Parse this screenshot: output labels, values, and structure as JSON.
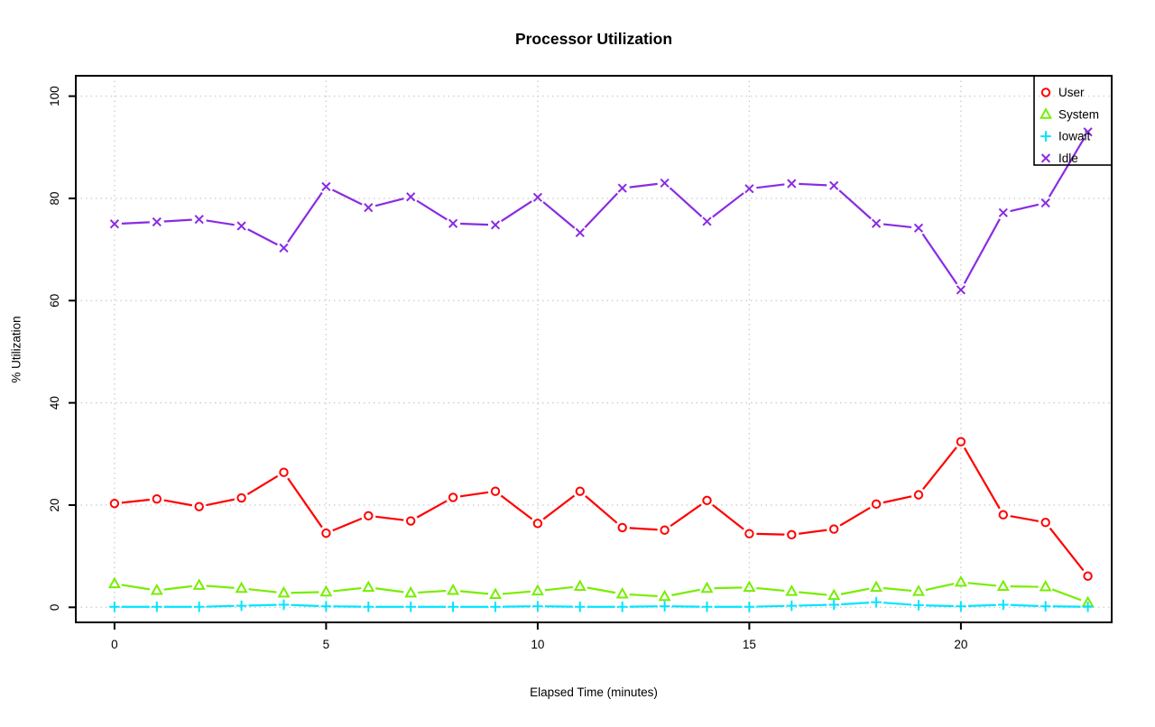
{
  "chart_data": {
    "type": "line",
    "title": "Processor Utilization",
    "xlabel": "Elapsed Time (minutes)",
    "ylabel": "% Utilization",
    "x": [
      0,
      1,
      2,
      3,
      4,
      5,
      6,
      7,
      8,
      9,
      10,
      11,
      12,
      13,
      14,
      15,
      16,
      17,
      18,
      19,
      20,
      21,
      22,
      23
    ],
    "xlim": [
      0,
      23
    ],
    "ylim": [
      0,
      100
    ],
    "xticks": [
      0,
      5,
      10,
      15,
      20
    ],
    "yticks": [
      0,
      20,
      40,
      60,
      80,
      100
    ],
    "grid": "dotted",
    "grid_color": "#cfcfcf",
    "legend_position": "top-right",
    "legend_transparent": true,
    "series": [
      {
        "name": "User",
        "color": "#ff0000",
        "marker": "circle",
        "values": [
          20.3,
          21.2,
          19.7,
          21.4,
          26.4,
          14.5,
          17.9,
          16.9,
          21.5,
          22.7,
          16.4,
          22.7,
          15.6,
          15.1,
          20.9,
          14.4,
          14.2,
          15.3,
          20.2,
          22.0,
          32.4,
          18.1,
          16.6,
          6.1
        ]
      },
      {
        "name": "System",
        "color": "#76ee00",
        "marker": "triangle",
        "values": [
          4.6,
          3.3,
          4.3,
          3.7,
          2.8,
          3.0,
          3.9,
          2.8,
          3.3,
          2.5,
          3.2,
          4.1,
          2.6,
          2.1,
          3.7,
          3.9,
          3.1,
          2.3,
          3.9,
          3.1,
          4.9,
          4.1,
          4.0,
          0.9
        ]
      },
      {
        "name": "Iowait",
        "color": "#00e5ff",
        "marker": "plus",
        "values": [
          0.1,
          0.1,
          0.1,
          0.3,
          0.5,
          0.2,
          0.1,
          0.1,
          0.1,
          0.1,
          0.2,
          0.1,
          0.1,
          0.2,
          0.1,
          0.1,
          0.3,
          0.5,
          1.0,
          0.4,
          0.2,
          0.5,
          0.2,
          0.1
        ]
      },
      {
        "name": "Idle",
        "color": "#8a2be2",
        "marker": "x",
        "values": [
          75.0,
          75.4,
          75.9,
          74.6,
          70.3,
          82.3,
          78.2,
          80.3,
          75.1,
          74.8,
          80.2,
          73.3,
          82.0,
          83.0,
          75.5,
          81.9,
          82.9,
          82.5,
          75.1,
          74.2,
          62.1,
          77.2,
          79.1,
          93.0
        ]
      }
    ]
  }
}
